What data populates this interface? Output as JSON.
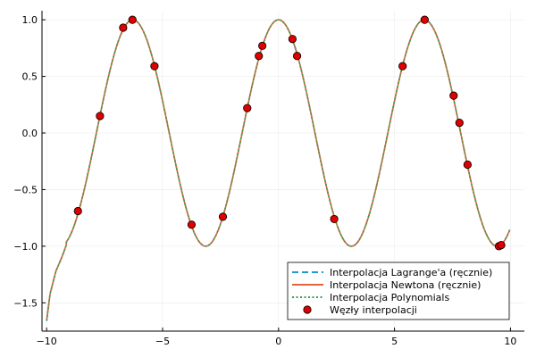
{
  "chart_data": {
    "type": "line",
    "title": "",
    "xlabel": "",
    "ylabel": "",
    "xlim": [
      -10.2,
      10.6
    ],
    "ylim": [
      -1.75,
      1.08
    ],
    "x_ticks": [
      -10,
      -5,
      0,
      5,
      10
    ],
    "x_tick_labels": [
      "−10",
      "−5",
      "0",
      "5",
      "10"
    ],
    "y_ticks": [
      -1.5,
      -1.0,
      -0.5,
      0.0,
      0.5,
      1.0
    ],
    "y_tick_labels": [
      "−1.5",
      "−1.0",
      "−0.5",
      "0.0",
      "0.5",
      "1.0"
    ],
    "grid": true,
    "legend_position": "bottom-right",
    "curve": {
      "x_start": -10,
      "x_end": 10,
      "left_tail": [
        [
          -10.0,
          -1.66
        ],
        [
          -9.85,
          -1.42
        ],
        [
          -9.6,
          -1.22
        ],
        [
          -9.35,
          -1.1
        ],
        [
          -9.15,
          -0.99
        ]
      ]
    },
    "series": [
      {
        "name": "Interpolacja Lagrange'a (ręcznie)",
        "style": "dashed",
        "color": "#1f9bd6"
      },
      {
        "name": "Interpolacja Newtona (ręcznie)",
        "style": "solid",
        "color": "#e3643c"
      },
      {
        "name": "Interpolacja Polynomials",
        "style": "dotted",
        "color": "#3aa04a"
      },
      {
        "name": "Węzły interpolacji",
        "style": "markers",
        "color": "#e00000",
        "points": [
          [
            -8.65,
            -0.69
          ],
          [
            -7.7,
            0.15
          ],
          [
            -6.7,
            0.93
          ],
          [
            -6.3,
            1.0
          ],
          [
            -5.35,
            0.59
          ],
          [
            -3.75,
            -0.81
          ],
          [
            -2.4,
            -0.74
          ],
          [
            -1.35,
            0.22
          ],
          [
            -0.85,
            0.68
          ],
          [
            -0.7,
            0.77
          ],
          [
            0.6,
            0.83
          ],
          [
            0.8,
            0.68
          ],
          [
            2.4,
            -0.76
          ],
          [
            5.35,
            0.59
          ],
          [
            6.3,
            1.0
          ],
          [
            7.55,
            0.33
          ],
          [
            7.8,
            0.09
          ],
          [
            8.15,
            -0.28
          ],
          [
            9.5,
            -1.0
          ],
          [
            9.6,
            -0.99
          ]
        ]
      }
    ]
  }
}
